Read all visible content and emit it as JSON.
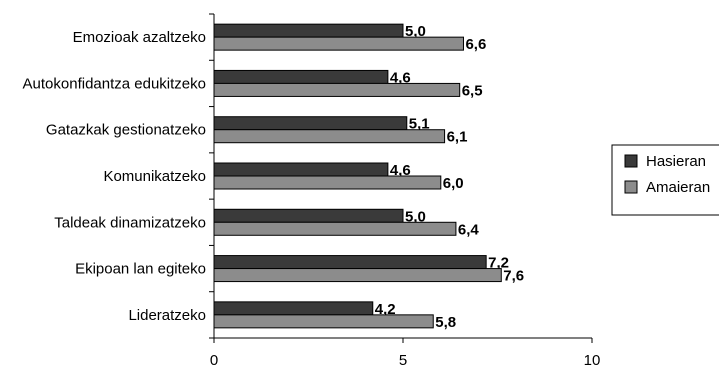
{
  "chart_data": {
    "type": "bar",
    "orientation": "horizontal",
    "title": "",
    "xlabel": "",
    "ylabel": "",
    "categories": [
      "Emozioak azaltzeko",
      "Autokonfidantza edukitzeko",
      "Gatazkak gestionatzeko",
      "Komunikatzeko",
      "Taldeak dinamizatzeko",
      "Ekipoan lan egiteko",
      "Lideratzeko"
    ],
    "series": [
      {
        "name": "Hasieran",
        "values": [
          5.0,
          4.6,
          5.1,
          4.6,
          5.0,
          7.2,
          4.2
        ],
        "labels": [
          "5,0",
          "4,6",
          "5,1",
          "4,6",
          "5,0",
          "7,2",
          "4,2"
        ],
        "color": "#3a3a3a"
      },
      {
        "name": "Amaieran",
        "values": [
          6.6,
          6.5,
          6.1,
          6.0,
          6.4,
          7.6,
          5.8
        ],
        "labels": [
          "6,6",
          "6,5",
          "6,1",
          "6,0",
          "6,4",
          "7,6",
          "5,8"
        ],
        "color": "#8c8c8c"
      }
    ],
    "xlim": [
      0,
      10
    ],
    "xticks": [
      0,
      5,
      10
    ],
    "xtick_labels": [
      "0",
      "5",
      "10"
    ],
    "grid": false,
    "legend_position": "right"
  }
}
